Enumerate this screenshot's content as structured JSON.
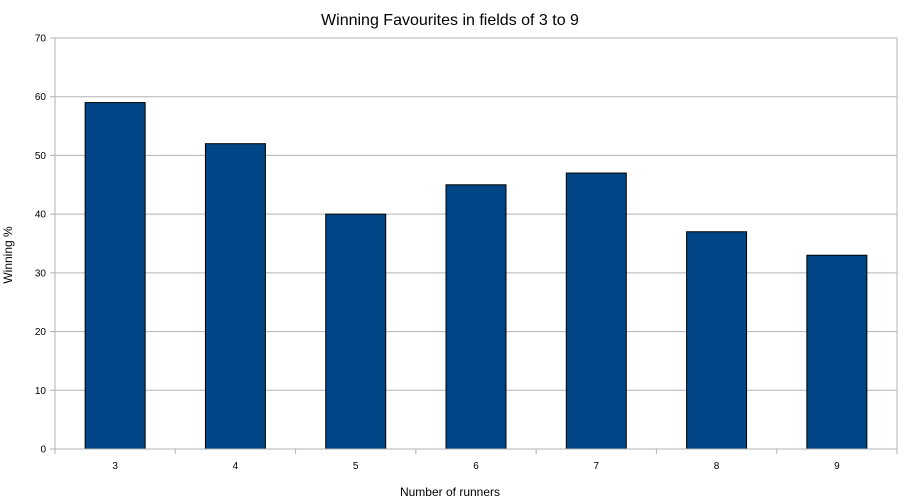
{
  "chart_data": {
    "type": "bar",
    "title": "Winning Favourites in fields of 3 to 9",
    "xlabel": "Number of runners",
    "ylabel": "Winning %",
    "categories": [
      "3",
      "4",
      "5",
      "6",
      "7",
      "8",
      "9"
    ],
    "values": [
      59,
      52,
      40,
      45,
      47,
      37,
      33
    ],
    "ylim": [
      0,
      70
    ],
    "yticks": [
      "0",
      "10",
      "20",
      "30",
      "40",
      "50",
      "60",
      "70"
    ],
    "grid": true,
    "legend": "none",
    "colors": {
      "bar": "#004586",
      "bar_outline": "#000000",
      "grid": "#b3b3b3",
      "axis": "#b3b3b3"
    }
  }
}
